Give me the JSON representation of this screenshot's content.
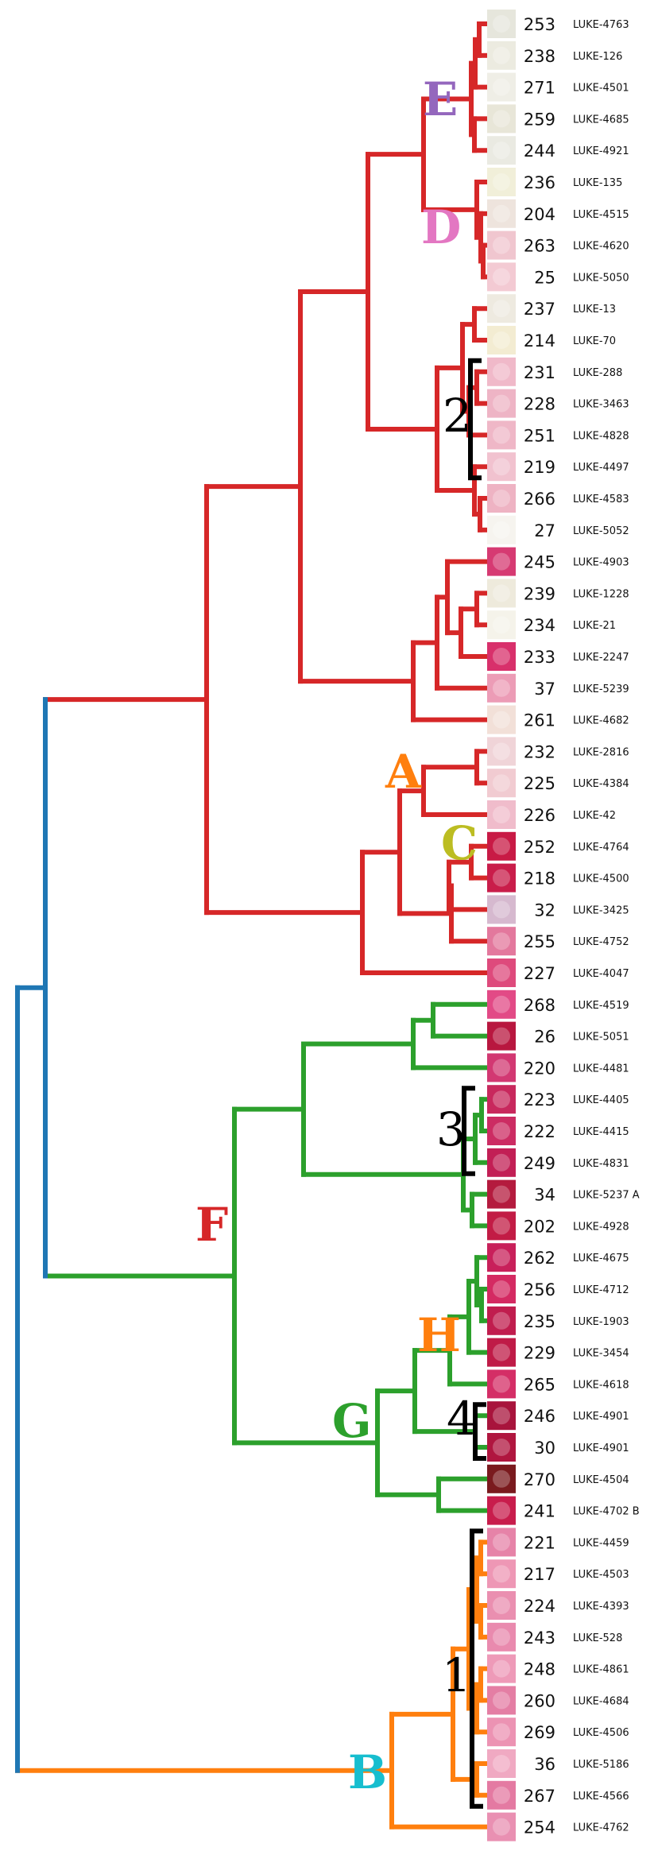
{
  "colors": {
    "red": "#d62728",
    "green": "#2ca02c",
    "blue": "#1f77b4",
    "orange": "#ff7f0e",
    "black": "#000000",
    "label_E": "#9467bd",
    "label_D": "#e377c2",
    "label_A": "#ff7f0e",
    "label_C": "#bcbd22",
    "label_F": "#d62728",
    "label_G": "#2ca02c",
    "label_H": "#ff7f0e",
    "label_B": "#17becf"
  },
  "leaves": [
    {
      "num": "253",
      "id": "LUKE-4763",
      "thumb": "#e6e6dc"
    },
    {
      "num": "238",
      "id": "LUKE-126",
      "thumb": "#ecebe0"
    },
    {
      "num": "271",
      "id": "LUKE-4501",
      "thumb": "#efeee6"
    },
    {
      "num": "259",
      "id": "LUKE-4685",
      "thumb": "#e8e6d8"
    },
    {
      "num": "244",
      "id": "LUKE-4921",
      "thumb": "#eaeae2"
    },
    {
      "num": "236",
      "id": "LUKE-135",
      "thumb": "#f1efd9"
    },
    {
      "num": "204",
      "id": "LUKE-4515",
      "thumb": "#eee4dd"
    },
    {
      "num": "263",
      "id": "LUKE-4620",
      "thumb": "#f0c6cf"
    },
    {
      "num": "25",
      "id": "LUKE-5050",
      "thumb": "#f3cad3"
    },
    {
      "num": "237",
      "id": "LUKE-13",
      "thumb": "#eeeae0"
    },
    {
      "num": "214",
      "id": "LUKE-70",
      "thumb": "#f3ecd2"
    },
    {
      "num": "231",
      "id": "LUKE-288",
      "thumb": "#f0b9c9"
    },
    {
      "num": "228",
      "id": "LUKE-3463",
      "thumb": "#eeb4c5"
    },
    {
      "num": "251",
      "id": "LUKE-4828",
      "thumb": "#efb7c7"
    },
    {
      "num": "219",
      "id": "LUKE-4497",
      "thumb": "#f1c2cf"
    },
    {
      "num": "266",
      "id": "LUKE-4583",
      "thumb": "#eeb3c3"
    },
    {
      "num": "27",
      "id": "LUKE-5052",
      "thumb": "#f6f4ef"
    },
    {
      "num": "245",
      "id": "LUKE-4903",
      "thumb": "#d63a72"
    },
    {
      "num": "239",
      "id": "LUKE-1228",
      "thumb": "#eeeadc"
    },
    {
      "num": "234",
      "id": "LUKE-21",
      "thumb": "#f5f3ea"
    },
    {
      "num": "233",
      "id": "LUKE-2247",
      "thumb": "#d8306b"
    },
    {
      "num": "37",
      "id": "LUKE-5239",
      "thumb": "#ec9cb6"
    },
    {
      "num": "261",
      "id": "LUKE-4682",
      "thumb": "#f2e0d8"
    },
    {
      "num": "232",
      "id": "LUKE-2816",
      "thumb": "#f0d4d8"
    },
    {
      "num": "225",
      "id": "LUKE-4384",
      "thumb": "#f1cbd1"
    },
    {
      "num": "226",
      "id": "LUKE-42",
      "thumb": "#f0bccb"
    },
    {
      "num": "252",
      "id": "LUKE-4764",
      "thumb": "#c81a45"
    },
    {
      "num": "218",
      "id": "LUKE-4500",
      "thumb": "#c91d4a"
    },
    {
      "num": "32",
      "id": "LUKE-3425",
      "thumb": "#d6b9cf"
    },
    {
      "num": "255",
      "id": "LUKE-4752",
      "thumb": "#e3789d"
    },
    {
      "num": "227",
      "id": "LUKE-4047",
      "thumb": "#de4a7c"
    },
    {
      "num": "268",
      "id": "LUKE-4519",
      "thumb": "#e24a86"
    },
    {
      "num": "26",
      "id": "LUKE-5051",
      "thumb": "#b8173f"
    },
    {
      "num": "220",
      "id": "LUKE-4481",
      "thumb": "#d23872"
    },
    {
      "num": "223",
      "id": "LUKE-4405",
      "thumb": "#c8285d"
    },
    {
      "num": "222",
      "id": "LUKE-4415",
      "thumb": "#cc2c63"
    },
    {
      "num": "249",
      "id": "LUKE-4831",
      "thumb": "#c21f55"
    },
    {
      "num": "34",
      "id": "LUKE-5237 A",
      "thumb": "#b41b3e"
    },
    {
      "num": "202",
      "id": "LUKE-4928",
      "thumb": "#c21c45"
    },
    {
      "num": "262",
      "id": "LUKE-4675",
      "thumb": "#c8205a"
    },
    {
      "num": "256",
      "id": "LUKE-4712",
      "thumb": "#d42a62"
    },
    {
      "num": "235",
      "id": "LUKE-1903",
      "thumb": "#c01d4e"
    },
    {
      "num": "229",
      "id": "LUKE-3454",
      "thumb": "#bf1b47"
    },
    {
      "num": "265",
      "id": "LUKE-4618",
      "thumb": "#d42e66"
    },
    {
      "num": "246",
      "id": "LUKE-4901",
      "thumb": "#a8143c"
    },
    {
      "num": "30",
      "id": "LUKE-4901",
      "thumb": "#b0163f"
    },
    {
      "num": "270",
      "id": "LUKE-4504",
      "thumb": "#7a1a1e"
    },
    {
      "num": "241",
      "id": "LUKE-4702 B",
      "thumb": "#c81d4c"
    },
    {
      "num": "221",
      "id": "LUKE-4459",
      "thumb": "#e683a8"
    },
    {
      "num": "217",
      "id": "LUKE-4503",
      "thumb": "#ee97b5"
    },
    {
      "num": "224",
      "id": "LUKE-4393",
      "thumb": "#ea8fb0"
    },
    {
      "num": "243",
      "id": "LUKE-528",
      "thumb": "#e98aae"
    },
    {
      "num": "248",
      "id": "LUKE-4861",
      "thumb": "#ee9ab8"
    },
    {
      "num": "260",
      "id": "LUKE-4684",
      "thumb": "#e47ea4"
    },
    {
      "num": "269",
      "id": "LUKE-4506",
      "thumb": "#ec93b3"
    },
    {
      "num": "36",
      "id": "LUKE-5186",
      "thumb": "#f0a9c2"
    },
    {
      "num": "267",
      "id": "LUKE-4566",
      "thumb": "#e47aa2"
    },
    {
      "num": "254",
      "id": "LUKE-4762",
      "thumb": "#e990b2"
    }
  ],
  "clade_labels": [
    "E",
    "D",
    "A",
    "C",
    "F",
    "G",
    "H",
    "B"
  ],
  "bracket_labels": [
    "2",
    "3",
    "4",
    "1"
  ]
}
